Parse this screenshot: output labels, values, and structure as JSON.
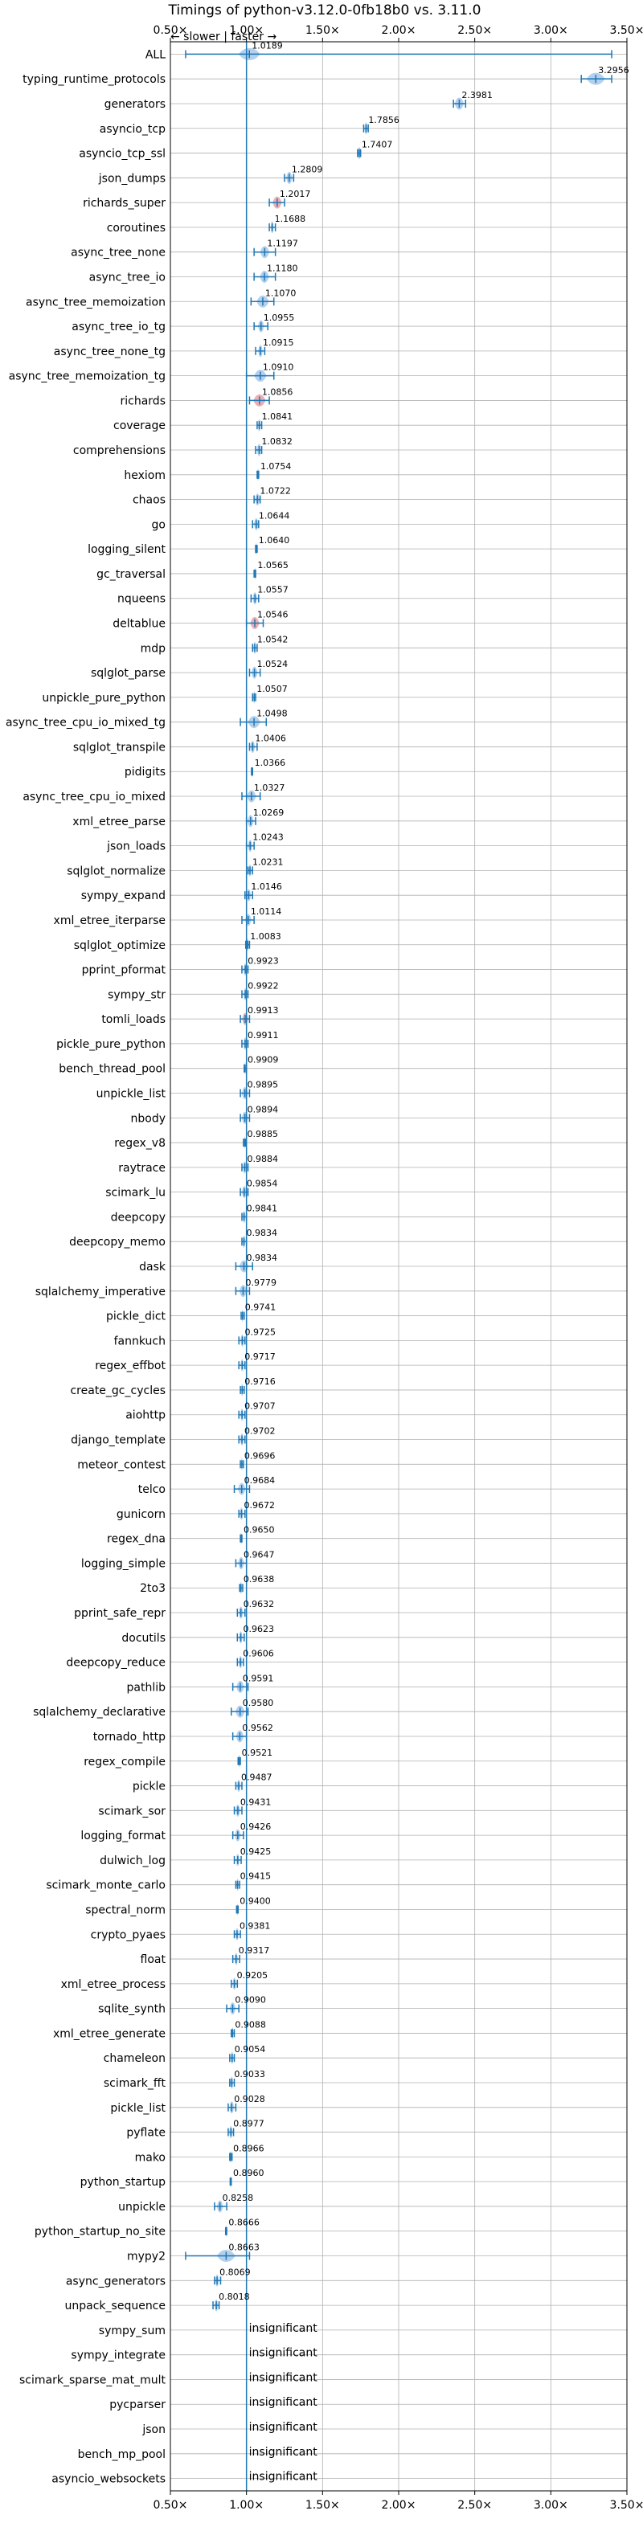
{
  "chart_data": {
    "type": "violin-range",
    "title": "Timings of python-v3.12.0-0fb18b0 vs. 3.11.0",
    "direction_label": "← slower | faster →",
    "xlim": [
      0.5,
      3.5
    ],
    "xticks": [
      0.5,
      1.0,
      1.5,
      2.0,
      2.5,
      3.0,
      3.5
    ],
    "xtick_labels": [
      "0.50×",
      "1.00×",
      "1.50×",
      "2.00×",
      "2.50×",
      "3.00×",
      "3.50×"
    ],
    "reference_line": 1.0,
    "grid": true,
    "insignificant_label": "insignificant",
    "benchmarks": [
      {
        "name": "ALL",
        "value": 1.0189,
        "label": "1.0189",
        "low": 0.6,
        "high": 3.4,
        "spread": 0.07
      },
      {
        "name": "typing_runtime_protocols",
        "value": 3.2956,
        "label": "3.2956",
        "low": 3.2,
        "high": 3.4,
        "spread": 0.06
      },
      {
        "name": "generators",
        "value": 2.3981,
        "label": "2.3981",
        "low": 2.36,
        "high": 2.44,
        "spread": 0.03
      },
      {
        "name": "asyncio_tcp",
        "value": 1.7856,
        "label": "1.7856",
        "low": 1.77,
        "high": 1.8,
        "spread": 0.01
      },
      {
        "name": "asyncio_tcp_ssl",
        "value": 1.7407,
        "label": "1.7407",
        "low": 1.73,
        "high": 1.75,
        "spread": 0.01
      },
      {
        "name": "json_dumps",
        "value": 1.2809,
        "label": "1.2809",
        "low": 1.25,
        "high": 1.31,
        "spread": 0.02
      },
      {
        "name": "richards_super",
        "value": 1.2017,
        "label": "1.2017",
        "low": 1.15,
        "high": 1.25,
        "spread": 0.03,
        "highlight": true
      },
      {
        "name": "coroutines",
        "value": 1.1688,
        "label": "1.1688",
        "low": 1.15,
        "high": 1.19,
        "spread": 0.01
      },
      {
        "name": "async_tree_none",
        "value": 1.1197,
        "label": "1.1197",
        "low": 1.05,
        "high": 1.19,
        "spread": 0.03
      },
      {
        "name": "async_tree_io",
        "value": 1.118,
        "label": "1.1180",
        "low": 1.05,
        "high": 1.19,
        "spread": 0.03
      },
      {
        "name": "async_tree_memoization",
        "value": 1.107,
        "label": "1.1070",
        "low": 1.03,
        "high": 1.18,
        "spread": 0.04
      },
      {
        "name": "async_tree_io_tg",
        "value": 1.0955,
        "label": "1.0955",
        "low": 1.05,
        "high": 1.14,
        "spread": 0.02
      },
      {
        "name": "async_tree_none_tg",
        "value": 1.0915,
        "label": "1.0915",
        "low": 1.06,
        "high": 1.12,
        "spread": 0.015
      },
      {
        "name": "async_tree_memoization_tg",
        "value": 1.091,
        "label": "1.0910",
        "low": 1.0,
        "high": 1.18,
        "spread": 0.04
      },
      {
        "name": "richards",
        "value": 1.0856,
        "label": "1.0856",
        "low": 1.02,
        "high": 1.15,
        "spread": 0.04,
        "highlight": true
      },
      {
        "name": "coverage",
        "value": 1.0841,
        "label": "1.0841",
        "low": 1.07,
        "high": 1.1,
        "spread": 0.01
      },
      {
        "name": "comprehensions",
        "value": 1.0832,
        "label": "1.0832",
        "low": 1.06,
        "high": 1.1,
        "spread": 0.015
      },
      {
        "name": "hexiom",
        "value": 1.0754,
        "label": "1.0754",
        "low": 1.07,
        "high": 1.08,
        "spread": 0.005
      },
      {
        "name": "chaos",
        "value": 1.0722,
        "label": "1.0722",
        "low": 1.05,
        "high": 1.09,
        "spread": 0.015
      },
      {
        "name": "go",
        "value": 1.0644,
        "label": "1.0644",
        "low": 1.04,
        "high": 1.08,
        "spread": 0.015
      },
      {
        "name": "logging_silent",
        "value": 1.064,
        "label": "1.0640",
        "low": 1.06,
        "high": 1.07,
        "spread": 0.005
      },
      {
        "name": "gc_traversal",
        "value": 1.0565,
        "label": "1.0565",
        "low": 1.05,
        "high": 1.06,
        "spread": 0.004
      },
      {
        "name": "nqueens",
        "value": 1.0557,
        "label": "1.0557",
        "low": 1.03,
        "high": 1.08,
        "spread": 0.015
      },
      {
        "name": "deltablue",
        "value": 1.0546,
        "label": "1.0546",
        "low": 1.0,
        "high": 1.11,
        "spread": 0.03,
        "highlight": true
      },
      {
        "name": "mdp",
        "value": 1.0542,
        "label": "1.0542",
        "low": 1.04,
        "high": 1.07,
        "spread": 0.01
      },
      {
        "name": "sqlglot_parse",
        "value": 1.0524,
        "label": "1.0524",
        "low": 1.02,
        "high": 1.09,
        "spread": 0.02
      },
      {
        "name": "unpickle_pure_python",
        "value": 1.0507,
        "label": "1.0507",
        "low": 1.04,
        "high": 1.06,
        "spread": 0.006
      },
      {
        "name": "async_tree_cpu_io_mixed_tg",
        "value": 1.0498,
        "label": "1.0498",
        "low": 0.96,
        "high": 1.13,
        "spread": 0.04
      },
      {
        "name": "sqlglot_transpile",
        "value": 1.0406,
        "label": "1.0406",
        "low": 1.02,
        "high": 1.07,
        "spread": 0.015
      },
      {
        "name": "pidigits",
        "value": 1.0366,
        "label": "1.0366",
        "low": 1.033,
        "high": 1.04,
        "spread": 0.003
      },
      {
        "name": "async_tree_cpu_io_mixed",
        "value": 1.0327,
        "label": "1.0327",
        "low": 0.97,
        "high": 1.09,
        "spread": 0.03
      },
      {
        "name": "xml_etree_parse",
        "value": 1.0269,
        "label": "1.0269",
        "low": 1.0,
        "high": 1.06,
        "spread": 0.02
      },
      {
        "name": "json_loads",
        "value": 1.0243,
        "label": "1.0243",
        "low": 1.0,
        "high": 1.05,
        "spread": 0.015
      },
      {
        "name": "sqlglot_normalize",
        "value": 1.0231,
        "label": "1.0231",
        "low": 1.01,
        "high": 1.04,
        "spread": 0.01
      },
      {
        "name": "sympy_expand",
        "value": 1.0146,
        "label": "1.0146",
        "low": 0.99,
        "high": 1.04,
        "spread": 0.015
      },
      {
        "name": "xml_etree_iterparse",
        "value": 1.0114,
        "label": "1.0114",
        "low": 0.97,
        "high": 1.05,
        "spread": 0.02
      },
      {
        "name": "sqlglot_optimize",
        "value": 1.0083,
        "label": "1.0083",
        "low": 0.995,
        "high": 1.02,
        "spread": 0.008
      },
      {
        "name": "pprint_pformat",
        "value": 0.9923,
        "label": "0.9923",
        "low": 0.97,
        "high": 1.01,
        "spread": 0.012
      },
      {
        "name": "sympy_str",
        "value": 0.9922,
        "label": "0.9922",
        "low": 0.97,
        "high": 1.01,
        "spread": 0.012
      },
      {
        "name": "tomli_loads",
        "value": 0.9913,
        "label": "0.9913",
        "low": 0.96,
        "high": 1.02,
        "spread": 0.02,
        "highlight": true
      },
      {
        "name": "pickle_pure_python",
        "value": 0.9911,
        "label": "0.9911",
        "low": 0.97,
        "high": 1.01,
        "spread": 0.012
      },
      {
        "name": "bench_thread_pool",
        "value": 0.9909,
        "label": "0.9909",
        "low": 0.985,
        "high": 1.0,
        "spread": 0.005
      },
      {
        "name": "unpickle_list",
        "value": 0.9895,
        "label": "0.9895",
        "low": 0.96,
        "high": 1.02,
        "spread": 0.02
      },
      {
        "name": "nbody",
        "value": 0.9894,
        "label": "0.9894",
        "low": 0.96,
        "high": 1.02,
        "spread": 0.02
      },
      {
        "name": "regex_v8",
        "value": 0.9885,
        "label": "0.9885",
        "low": 0.98,
        "high": 0.995,
        "spread": 0.005
      },
      {
        "name": "raytrace",
        "value": 0.9884,
        "label": "0.9884",
        "low": 0.97,
        "high": 1.01,
        "spread": 0.012
      },
      {
        "name": "scimark_lu",
        "value": 0.9854,
        "label": "0.9854",
        "low": 0.96,
        "high": 1.01,
        "spread": 0.015
      },
      {
        "name": "deepcopy",
        "value": 0.9841,
        "label": "0.9841",
        "low": 0.97,
        "high": 1.0,
        "spread": 0.01
      },
      {
        "name": "deepcopy_memo",
        "value": 0.9834,
        "label": "0.9834",
        "low": 0.97,
        "high": 1.0,
        "spread": 0.01
      },
      {
        "name": "dask",
        "value": 0.9834,
        "label": "0.9834",
        "low": 0.93,
        "high": 1.04,
        "spread": 0.03
      },
      {
        "name": "sqlalchemy_imperative",
        "value": 0.9779,
        "label": "0.9779",
        "low": 0.93,
        "high": 1.02,
        "spread": 0.025
      },
      {
        "name": "pickle_dict",
        "value": 0.9741,
        "label": "0.9741",
        "low": 0.965,
        "high": 0.985,
        "spread": 0.006
      },
      {
        "name": "fannkuch",
        "value": 0.9725,
        "label": "0.9725",
        "low": 0.95,
        "high": 0.99,
        "spread": 0.012
      },
      {
        "name": "regex_effbot",
        "value": 0.9717,
        "label": "0.9717",
        "low": 0.95,
        "high": 0.99,
        "spread": 0.012
      },
      {
        "name": "create_gc_cycles",
        "value": 0.9716,
        "label": "0.9716",
        "low": 0.96,
        "high": 0.985,
        "spread": 0.008
      },
      {
        "name": "aiohttp",
        "value": 0.9707,
        "label": "0.9707",
        "low": 0.95,
        "high": 0.99,
        "spread": 0.012
      },
      {
        "name": "django_template",
        "value": 0.9702,
        "label": "0.9702",
        "low": 0.95,
        "high": 0.99,
        "spread": 0.012
      },
      {
        "name": "meteor_contest",
        "value": 0.9696,
        "label": "0.9696",
        "low": 0.96,
        "high": 0.98,
        "spread": 0.006
      },
      {
        "name": "telco",
        "value": 0.9684,
        "label": "0.9684",
        "low": 0.92,
        "high": 1.02,
        "spread": 0.025
      },
      {
        "name": "gunicorn",
        "value": 0.9672,
        "label": "0.9672",
        "low": 0.95,
        "high": 0.99,
        "spread": 0.012
      },
      {
        "name": "regex_dna",
        "value": 0.965,
        "label": "0.9650",
        "low": 0.96,
        "high": 0.97,
        "spread": 0.004
      },
      {
        "name": "logging_simple",
        "value": 0.9647,
        "label": "0.9647",
        "low": 0.93,
        "high": 1.0,
        "spread": 0.02
      },
      {
        "name": "2to3",
        "value": 0.9638,
        "label": "0.9638",
        "low": 0.955,
        "high": 0.975,
        "spread": 0.006
      },
      {
        "name": "pprint_safe_repr",
        "value": 0.9632,
        "label": "0.9632",
        "low": 0.94,
        "high": 0.99,
        "spread": 0.015
      },
      {
        "name": "docutils",
        "value": 0.9623,
        "label": "0.9623",
        "low": 0.94,
        "high": 0.985,
        "spread": 0.012
      },
      {
        "name": "deepcopy_reduce",
        "value": 0.9606,
        "label": "0.9606",
        "low": 0.94,
        "high": 0.98,
        "spread": 0.012
      },
      {
        "name": "pathlib",
        "value": 0.9591,
        "label": "0.9591",
        "low": 0.91,
        "high": 1.01,
        "spread": 0.025
      },
      {
        "name": "sqlalchemy_declarative",
        "value": 0.958,
        "label": "0.9580",
        "low": 0.9,
        "high": 1.01,
        "spread": 0.03
      },
      {
        "name": "tornado_http",
        "value": 0.9562,
        "label": "0.9562",
        "low": 0.91,
        "high": 1.0,
        "spread": 0.025
      },
      {
        "name": "regex_compile",
        "value": 0.9521,
        "label": "0.9521",
        "low": 0.945,
        "high": 0.96,
        "spread": 0.006
      },
      {
        "name": "pickle",
        "value": 0.9487,
        "label": "0.9487",
        "low": 0.93,
        "high": 0.97,
        "spread": 0.012
      },
      {
        "name": "scimark_sor",
        "value": 0.9431,
        "label": "0.9431",
        "low": 0.92,
        "high": 0.97,
        "spread": 0.015
      },
      {
        "name": "logging_format",
        "value": 0.9426,
        "label": "0.9426",
        "low": 0.91,
        "high": 0.98,
        "spread": 0.02
      },
      {
        "name": "dulwich_log",
        "value": 0.9425,
        "label": "0.9425",
        "low": 0.92,
        "high": 0.965,
        "spread": 0.012
      },
      {
        "name": "scimark_monte_carlo",
        "value": 0.9415,
        "label": "0.9415",
        "low": 0.93,
        "high": 0.955,
        "spread": 0.008
      },
      {
        "name": "spectral_norm",
        "value": 0.94,
        "label": "0.9400",
        "low": 0.935,
        "high": 0.945,
        "spread": 0.004
      },
      {
        "name": "crypto_pyaes",
        "value": 0.9381,
        "label": "0.9381",
        "low": 0.92,
        "high": 0.96,
        "spread": 0.012
      },
      {
        "name": "float",
        "value": 0.9317,
        "label": "0.9317",
        "low": 0.91,
        "high": 0.955,
        "spread": 0.012
      },
      {
        "name": "xml_etree_process",
        "value": 0.9205,
        "label": "0.9205",
        "low": 0.9,
        "high": 0.94,
        "spread": 0.012
      },
      {
        "name": "sqlite_synth",
        "value": 0.909,
        "label": "0.9090",
        "low": 0.87,
        "high": 0.95,
        "spread": 0.02
      },
      {
        "name": "xml_etree_generate",
        "value": 0.9088,
        "label": "0.9088",
        "low": 0.9,
        "high": 0.92,
        "spread": 0.006
      },
      {
        "name": "chameleon",
        "value": 0.9054,
        "label": "0.9054",
        "low": 0.89,
        "high": 0.92,
        "spread": 0.01
      },
      {
        "name": "scimark_fft",
        "value": 0.9033,
        "label": "0.9033",
        "low": 0.89,
        "high": 0.92,
        "spread": 0.01
      },
      {
        "name": "pickle_list",
        "value": 0.9028,
        "label": "0.9028",
        "low": 0.88,
        "high": 0.93,
        "spread": 0.015
      },
      {
        "name": "pyflate",
        "value": 0.8977,
        "label": "0.8977",
        "low": 0.88,
        "high": 0.915,
        "spread": 0.012
      },
      {
        "name": "mako",
        "value": 0.8966,
        "label": "0.8966",
        "low": 0.89,
        "high": 0.905,
        "spread": 0.005
      },
      {
        "name": "python_startup",
        "value": 0.896,
        "label": "0.8960",
        "low": 0.893,
        "high": 0.9,
        "spread": 0.003
      },
      {
        "name": "unpickle",
        "value": 0.8258,
        "label": "0.8258",
        "low": 0.79,
        "high": 0.87,
        "spread": 0.02
      },
      {
        "name": "python_startup_no_site",
        "value": 0.8666,
        "label": "0.8666",
        "low": 0.863,
        "high": 0.87,
        "spread": 0.003
      },
      {
        "name": "mypy2",
        "value": 0.8663,
        "label": "0.8663",
        "low": 0.6,
        "high": 1.02,
        "spread": 0.06
      },
      {
        "name": "async_generators",
        "value": 0.8069,
        "label": "0.8069",
        "low": 0.79,
        "high": 0.83,
        "spread": 0.012
      },
      {
        "name": "unpack_sequence",
        "value": 0.8018,
        "label": "0.8018",
        "low": 0.78,
        "high": 0.82,
        "spread": 0.012
      },
      {
        "name": "sympy_sum",
        "insignificant": true
      },
      {
        "name": "sympy_integrate",
        "insignificant": true
      },
      {
        "name": "scimark_sparse_mat_mult",
        "insignificant": true
      },
      {
        "name": "pycparser",
        "insignificant": true
      },
      {
        "name": "json",
        "insignificant": true
      },
      {
        "name": "bench_mp_pool",
        "insignificant": true
      },
      {
        "name": "asyncio_websockets",
        "insignificant": true
      }
    ],
    "colors": {
      "range": "#1f77b4",
      "violin": "#a6c8ea",
      "violin_highlight": "#e8a0a8",
      "grid": "#b0b0b0",
      "reference": "#1f77b4"
    }
  }
}
